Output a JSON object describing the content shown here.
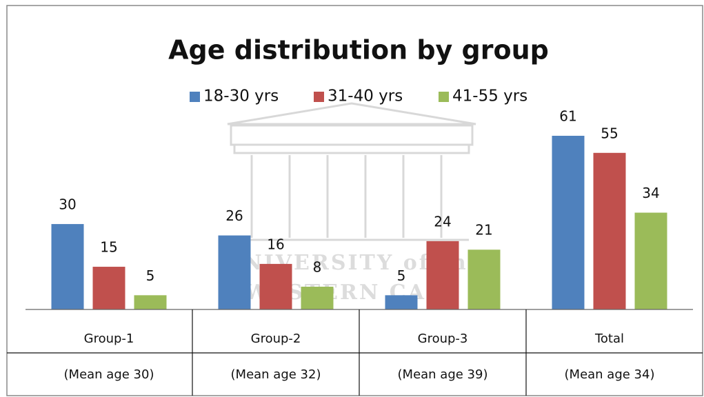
{
  "chart_data": {
    "type": "bar",
    "title": "Age distribution by group",
    "categories": [
      "Group-1",
      "Group-2",
      "Group-3",
      "Total"
    ],
    "sublabels": [
      "(Mean age 30)",
      "(Mean age 32)",
      "(Mean age 39)",
      "(Mean age 34)"
    ],
    "series": [
      {
        "name": "18-30 yrs",
        "color": "#4f81bd",
        "values": [
          30,
          26,
          5,
          61
        ]
      },
      {
        "name": "31-40 yrs",
        "color": "#c0504d",
        "values": [
          15,
          16,
          24,
          55
        ]
      },
      {
        "name": "41-55 yrs",
        "color": "#9bbb59",
        "values": [
          5,
          8,
          21,
          34
        ]
      }
    ]
  },
  "watermark": {
    "line1": "UNIVERSITY of the",
    "line2": "WESTERN CAPE"
  }
}
